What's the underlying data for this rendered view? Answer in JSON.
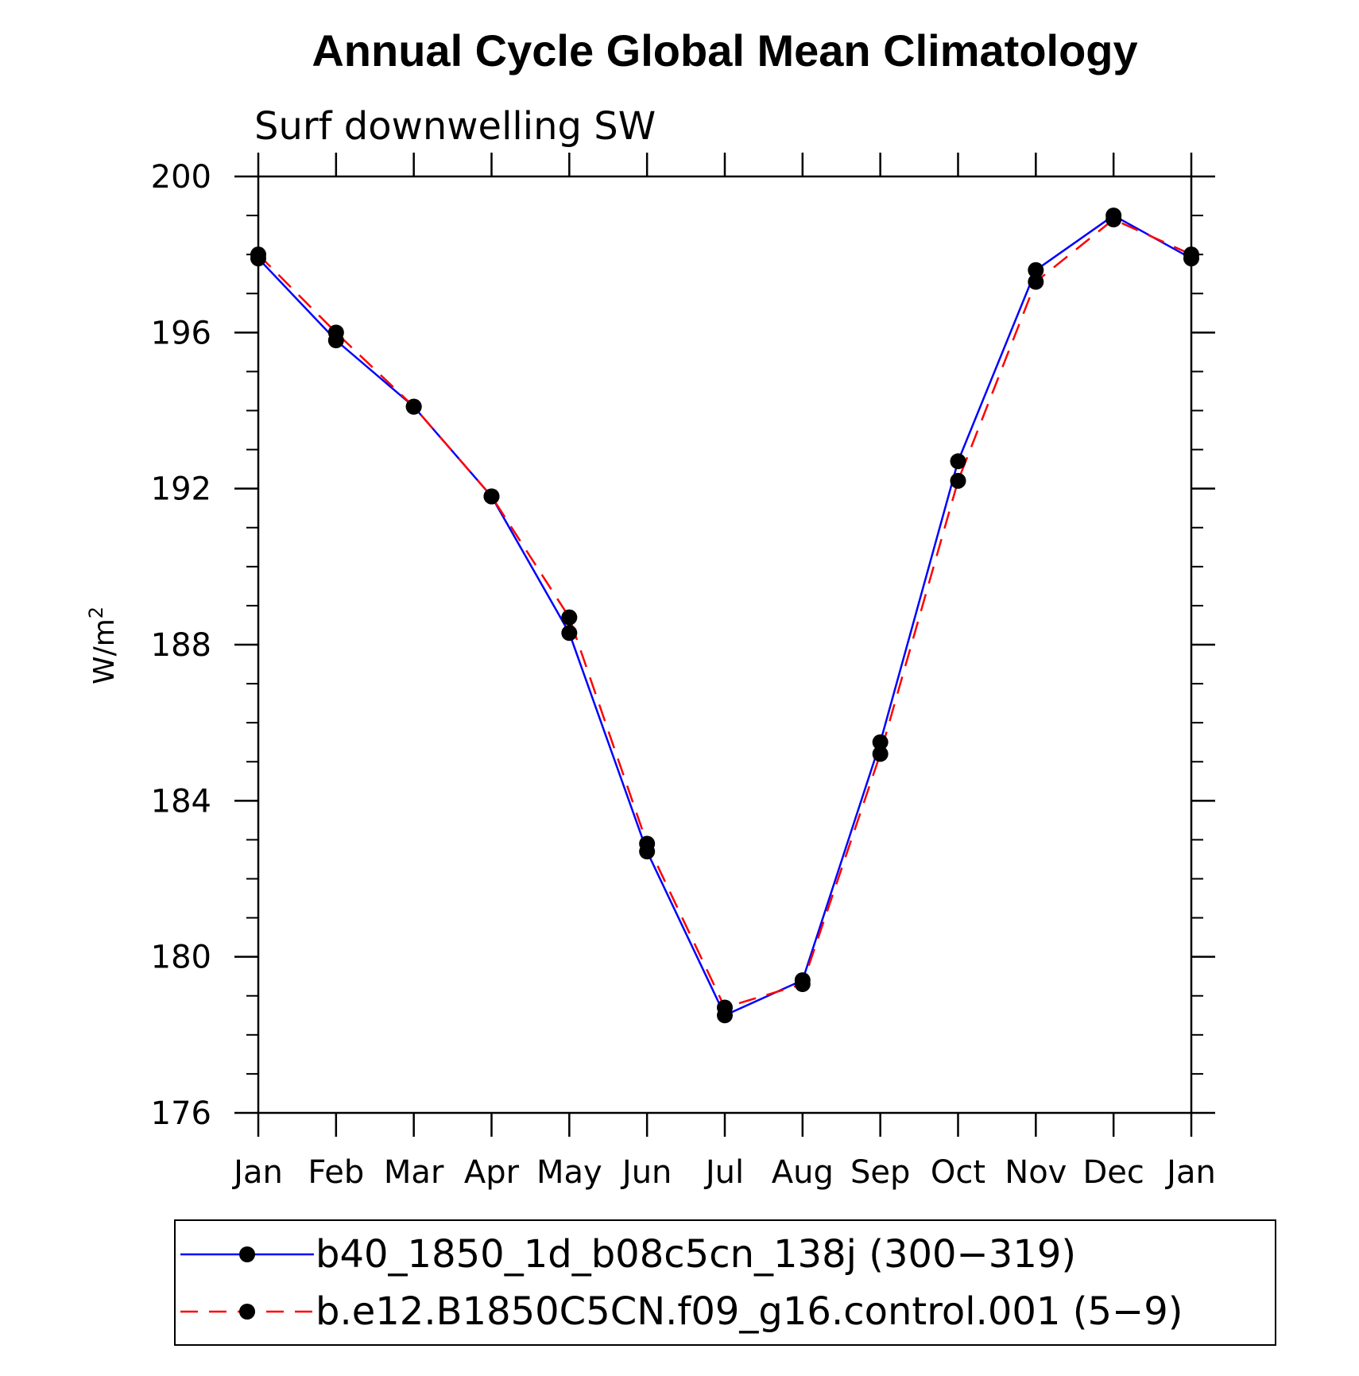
{
  "chart_data": {
    "type": "line",
    "title": "Annual Cycle Global Mean Climatology",
    "subtitle": "Surf downwelling SW",
    "ylabel": "W/m",
    "ylabel_sup": "2",
    "xlabel": "",
    "categories": [
      "Jan",
      "Feb",
      "Mar",
      "Apr",
      "May",
      "Jun",
      "Jul",
      "Aug",
      "Sep",
      "Oct",
      "Nov",
      "Dec",
      "Jan"
    ],
    "ylim": [
      176,
      200
    ],
    "yticks": [
      176,
      180,
      184,
      188,
      192,
      196,
      200
    ],
    "series": [
      {
        "name": "b40_1850_1d_b08c5cn_138j (300−319)",
        "color": "#0000ff",
        "dash": "solid",
        "values": [
          197.9,
          195.8,
          194.1,
          191.8,
          188.3,
          182.7,
          178.5,
          179.4,
          185.5,
          192.7,
          197.6,
          199.0,
          197.9
        ]
      },
      {
        "name": "b.e12.B1850C5CN.f09_g16.control.001 (5−9)",
        "color": "#ff0000",
        "dash": "dashed",
        "values": [
          198.0,
          196.0,
          194.1,
          191.8,
          188.7,
          182.9,
          178.7,
          179.3,
          185.2,
          192.2,
          197.3,
          198.9,
          198.0
        ]
      }
    ],
    "legend_position": "bottom"
  }
}
